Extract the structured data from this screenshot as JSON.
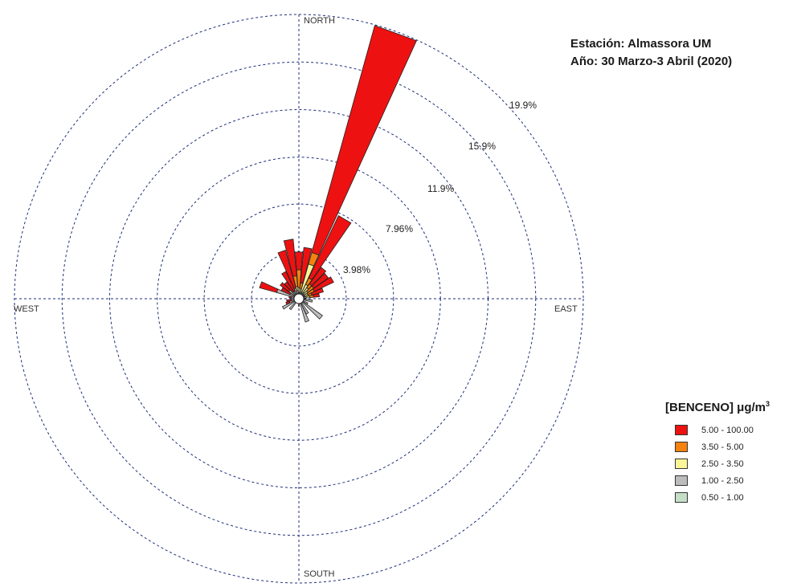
{
  "title": {
    "line1": "Estación: Almassora UM",
    "line2": "Año: 30 Marzo-3 Abril (2020)"
  },
  "legend": {
    "title_main": "[BENCENO] μg/m",
    "title_sup": "3",
    "items": [
      {
        "label": "5.00 - 100.00",
        "color": "#ee1111"
      },
      {
        "label": "3.50 - 5.00",
        "color": "#f4820f"
      },
      {
        "label": "2.50 - 3.50",
        "color": "#fbf59a"
      },
      {
        "label": "1.00 - 2.50",
        "color": "#bcbcbc"
      },
      {
        "label": "0.50 - 1.00",
        "color": "#c5dec8"
      }
    ]
  },
  "chart_data": {
    "type": "wind_rose",
    "compass_labels": {
      "north": "NORTH",
      "east": "EAST",
      "south": "SOUTH",
      "west": "WEST"
    },
    "radial_ticks": [
      3.98,
      7.96,
      11.9,
      15.9,
      19.9
    ],
    "radial_tick_labels": [
      "3.98%",
      "7.96%",
      "11.9%",
      "15.9%",
      "19.9%"
    ],
    "radial_max": 23.9,
    "bin_colors": [
      "#bcbcbc",
      "#fbf59a",
      "#f4820f",
      "#ee1111"
    ],
    "bin_labels": [
      "1.00 - 2.50",
      "2.50 - 3.50",
      "3.50 - 5.00",
      "5.00 - 100.00"
    ],
    "petals": [
      {
        "direction": 0,
        "values": [
          0.3,
          0.4,
          1.5,
          1.5
        ]
      },
      {
        "direction": 10,
        "values": [
          0.3,
          0.3,
          0.5,
          3.0
        ]
      },
      {
        "direction": 20,
        "values": [
          0.4,
          2.4,
          1.0,
          19.8
        ]
      },
      {
        "direction": 30,
        "values": [
          0.3,
          0.8,
          0.6,
          5.8
        ]
      },
      {
        "direction": 40,
        "values": [
          0.4,
          0.5,
          0.4,
          1.7
        ]
      },
      {
        "direction": 50,
        "values": [
          0.3,
          0.4,
          0.6,
          1.5
        ]
      },
      {
        "direction": 60,
        "values": [
          0.3,
          0.3,
          0.6,
          1.8
        ]
      },
      {
        "direction": 70,
        "values": [
          0.3,
          0.3,
          0.3,
          1.0
        ]
      },
      {
        "direction": 80,
        "values": [
          0.4,
          0.3,
          0.3,
          0.5
        ]
      },
      {
        "direction": 100,
        "values": [
          0.9,
          0.0,
          0.0,
          0.0
        ]
      },
      {
        "direction": 120,
        "values": [
          0.6,
          0.0,
          0.0,
          0.0
        ]
      },
      {
        "direction": 130,
        "values": [
          2.2,
          0.0,
          0.0,
          0.0
        ]
      },
      {
        "direction": 150,
        "values": [
          1.2,
          0.0,
          0.0,
          0.0
        ]
      },
      {
        "direction": 160,
        "values": [
          1.8,
          0.0,
          0.0,
          0.0
        ]
      },
      {
        "direction": 180,
        "values": [
          0.4,
          0.0,
          0.0,
          0.0
        ]
      },
      {
        "direction": 220,
        "values": [
          0.9,
          0.0,
          0.0,
          0.0
        ]
      },
      {
        "direction": 240,
        "values": [
          1.3,
          0.0,
          0.0,
          0.0
        ]
      },
      {
        "direction": 250,
        "values": [
          0.6,
          0.0,
          0.0,
          0.3
        ]
      },
      {
        "direction": 260,
        "values": [
          0.4,
          0.0,
          0.0,
          0.4
        ]
      },
      {
        "direction": 280,
        "values": [
          0.4,
          0.0,
          0.0,
          0.2
        ]
      },
      {
        "direction": 290,
        "values": [
          1.7,
          0.0,
          0.0,
          1.5
        ]
      },
      {
        "direction": 300,
        "values": [
          0.6,
          0.0,
          0.0,
          0.8
        ]
      },
      {
        "direction": 310,
        "values": [
          0.8,
          0.0,
          0.0,
          0.9
        ]
      },
      {
        "direction": 320,
        "values": [
          0.5,
          0.0,
          0.0,
          1.0
        ]
      },
      {
        "direction": 330,
        "values": [
          0.5,
          0.0,
          0.0,
          1.8
        ]
      },
      {
        "direction": 340,
        "values": [
          0.7,
          0.0,
          0.0,
          3.3
        ]
      },
      {
        "direction": 350,
        "values": [
          0.5,
          0.3,
          0.9,
          3.1
        ]
      }
    ]
  }
}
